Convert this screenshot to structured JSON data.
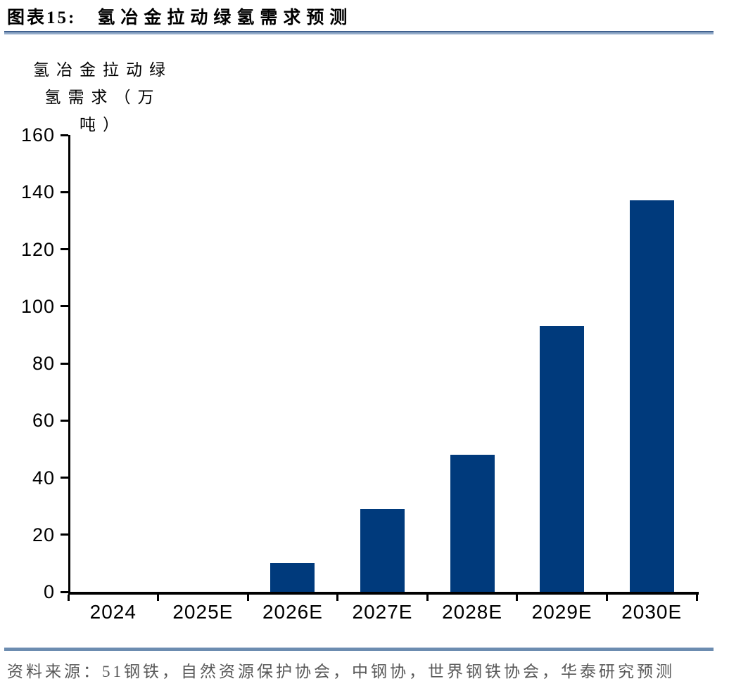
{
  "figure": {
    "label": "图表15:",
    "title": "氢冶金拉动绿氢需求预测"
  },
  "y_axis_title_lines": {
    "0": "氢冶金拉动绿",
    "1": "氢需求（万",
    "2": "吨）"
  },
  "source": {
    "text": "资料来源：51钢铁，自然资源保护协会，中钢协，世界钢铁协会，华泰研究预测"
  },
  "colors": {
    "bar": "#003A7C",
    "axis": "#000000",
    "title_rule_dark": "#41618E",
    "title_rule_light": "#93ABC9",
    "divider_light": "#AFC0D5",
    "divider": "#6C8CB0",
    "source_text": "#595959"
  },
  "chart_data": {
    "type": "bar",
    "title": "氢冶金拉动绿氢需求预测",
    "categories": [
      "2024",
      "2025E",
      "2026E",
      "2027E",
      "2028E",
      "2029E",
      "2030E"
    ],
    "values": [
      0,
      0,
      10,
      29,
      48,
      93,
      137
    ],
    "xlabel": "",
    "ylabel": "氢冶金拉动绿氢需求（万吨）",
    "ylim": [
      0,
      160
    ],
    "ytick_step": 20,
    "grid": false,
    "legend": "none"
  }
}
